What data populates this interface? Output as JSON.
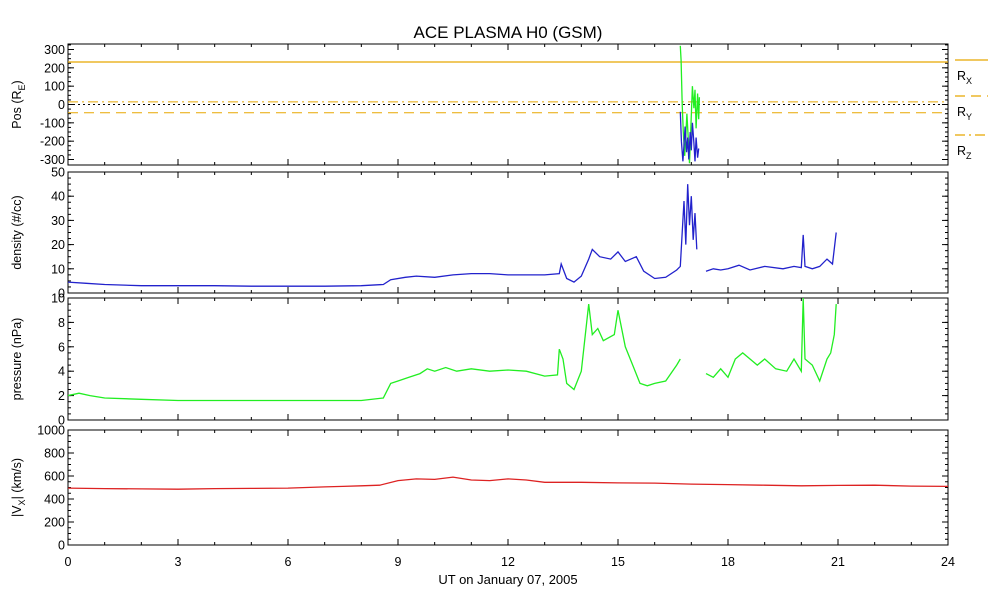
{
  "title": "ACE PLASMA H0 (GSM)",
  "x_axis": {
    "label": "UT on January 07, 2005",
    "min": 0,
    "max": 24,
    "ticks": [
      0,
      3,
      6,
      9,
      12,
      15,
      18,
      21,
      24
    ]
  },
  "panels": [
    {
      "id": "pos",
      "ylabel": "Pos (R",
      "ylabel_sub": "E",
      "ylabel_end": ")",
      "ylim": [
        -330,
        330
      ],
      "ticks": [
        -300,
        -200,
        -100,
        0,
        100,
        200,
        300
      ]
    },
    {
      "id": "density",
      "ylabel": "density (#/cc)",
      "ylim": [
        0,
        50
      ],
      "ticks": [
        0,
        10,
        20,
        30,
        40,
        50
      ]
    },
    {
      "id": "pressure",
      "ylabel": "pressure (nPa)",
      "ylim": [
        0,
        10
      ],
      "ticks": [
        0,
        2,
        4,
        6,
        8,
        10
      ]
    },
    {
      "id": "vx",
      "ylabel_pre": "|V",
      "ylabel_sub": "X",
      "ylabel_post": "| (km/s)",
      "ylim": [
        0,
        1000
      ],
      "ticks": [
        0,
        200,
        400,
        600,
        800,
        1000
      ]
    }
  ],
  "legend": [
    {
      "label": "R",
      "sub": "X",
      "style": "solid",
      "color": "#e8a700"
    },
    {
      "label": "R",
      "sub": "Y",
      "style": "dashed",
      "color": "#e8a700"
    },
    {
      "label": "R",
      "sub": "Z",
      "style": "dashdot",
      "color": "#e8a700"
    }
  ],
  "chart_data": [
    {
      "type": "line",
      "panel": "pos",
      "ylabel": "Pos (RE)",
      "xlim": [
        0,
        24
      ],
      "ylim": [
        -330,
        330
      ],
      "series": [
        {
          "name": "RX",
          "color": "#e8a700",
          "style": "solid",
          "x": [
            0,
            24
          ],
          "y": [
            232,
            232
          ]
        },
        {
          "name": "RY",
          "color": "#e8a700",
          "style": "dashed",
          "x": [
            0,
            24
          ],
          "y": [
            -45,
            -45
          ]
        },
        {
          "name": "RZ",
          "color": "#e8a700",
          "style": "dashdot",
          "x": [
            0,
            24
          ],
          "y": [
            14,
            14
          ]
        },
        {
          "color": "#000000",
          "style": "dotted",
          "x": [
            0,
            24
          ],
          "y": [
            0,
            0
          ]
        },
        {
          "color": "#22ee22",
          "style": "solid",
          "x": [
            16.7,
            16.72,
            16.75,
            16.78,
            16.82,
            16.85,
            16.88,
            16.92,
            16.95,
            17.0,
            17.03,
            17.07,
            17.1,
            17.13,
            17.17,
            17.2,
            17.22
          ],
          "y": [
            320,
            240,
            0,
            -150,
            -280,
            -170,
            -50,
            -200,
            -320,
            -60,
            100,
            -20,
            80,
            -130,
            60,
            -80,
            40
          ]
        },
        {
          "color": "#2222cc",
          "style": "solid",
          "x": [
            16.7,
            16.73,
            16.77,
            16.8,
            16.83,
            16.87,
            16.9,
            16.93,
            16.97,
            17.0,
            17.03,
            17.07,
            17.1,
            17.13,
            17.17,
            17.2
          ],
          "y": [
            -40,
            -200,
            -310,
            -220,
            -120,
            -260,
            -180,
            -300,
            -150,
            -250,
            -100,
            -210,
            -310,
            -180,
            -290,
            -240
          ]
        }
      ]
    },
    {
      "type": "line",
      "panel": "density",
      "ylabel": "density (#/cc)",
      "xlim": [
        0,
        24
      ],
      "ylim": [
        0,
        50
      ],
      "series": [
        {
          "color": "#2222cc",
          "x": [
            0,
            0.5,
            1,
            2,
            3,
            4,
            5,
            6,
            7,
            8,
            8.6,
            8.8,
            9.2,
            9.5,
            10,
            10.5,
            11,
            11.5,
            12,
            12.5,
            13.0,
            13.4,
            13.45,
            13.6,
            13.8,
            14.0,
            14.2,
            14.3,
            14.5,
            14.8,
            15.0,
            15.2,
            15.5,
            15.7,
            16.0,
            16.3,
            16.6,
            16.7,
            16.75,
            16.8,
            16.85,
            16.9,
            16.95,
            17.0,
            17.05,
            17.1,
            17.15,
            17.2,
            17.3,
            17.4,
            17.6,
            17.8,
            18.0,
            18.3,
            18.6,
            19.0,
            19.5,
            19.8,
            20.0,
            20.05,
            20.1,
            20.3,
            20.5,
            20.7,
            20.85,
            20.95
          ],
          "y": [
            4.5,
            4.0,
            3.5,
            3.0,
            3.0,
            3.0,
            2.8,
            2.8,
            2.8,
            3.0,
            3.5,
            5.5,
            6.5,
            7.0,
            6.5,
            7.5,
            8.0,
            8.0,
            7.5,
            7.5,
            7.5,
            8.0,
            12.0,
            6.0,
            4.5,
            7.0,
            14.0,
            18.0,
            15.0,
            14.0,
            17.0,
            13.0,
            15.0,
            9.0,
            6.0,
            6.5,
            9.5,
            11.0,
            25.0,
            38.0,
            20.0,
            45.0,
            28.0,
            40.0,
            22.0,
            33.0,
            18.0,
            null,
            null,
            9.0,
            10.0,
            9.5,
            10.0,
            11.5,
            9.5,
            11.0,
            10.0,
            11.0,
            10.5,
            24.0,
            11.0,
            10.0,
            11.0,
            14.0,
            12.0,
            25.0
          ]
        }
      ]
    },
    {
      "type": "line",
      "panel": "pressure",
      "ylabel": "pressure (nPa)",
      "xlim": [
        0,
        24
      ],
      "ylim": [
        0,
        10
      ],
      "series": [
        {
          "color": "#22ee22",
          "x": [
            0,
            0.3,
            0.6,
            1.0,
            2.0,
            3.0,
            4.0,
            5.0,
            6.0,
            7.0,
            8.0,
            8.6,
            8.8,
            9.0,
            9.3,
            9.6,
            9.8,
            10.0,
            10.3,
            10.6,
            11.0,
            11.5,
            12.0,
            12.5,
            13.0,
            13.35,
            13.4,
            13.5,
            13.6,
            13.8,
            14.0,
            14.2,
            14.3,
            14.45,
            14.6,
            14.9,
            15.0,
            15.2,
            15.4,
            15.6,
            15.8,
            16.0,
            16.3,
            16.6,
            16.7,
            null,
            17.4,
            17.6,
            17.8,
            18.0,
            18.2,
            18.4,
            18.8,
            19.0,
            19.3,
            19.6,
            19.8,
            20.0,
            20.05,
            20.1,
            20.3,
            20.5,
            20.7,
            20.8,
            20.9,
            20.95
          ],
          "y": [
            2.0,
            2.2,
            2.0,
            1.8,
            1.7,
            1.6,
            1.6,
            1.6,
            1.6,
            1.6,
            1.6,
            1.8,
            3.0,
            3.2,
            3.5,
            3.8,
            4.2,
            4.0,
            4.3,
            4.0,
            4.2,
            4.0,
            4.1,
            4.0,
            3.6,
            3.7,
            5.8,
            5.0,
            3.0,
            2.5,
            4.0,
            9.5,
            7.0,
            7.5,
            6.5,
            7.0,
            9.0,
            6.0,
            4.5,
            3.0,
            2.8,
            3.0,
            3.2,
            4.5,
            5.0,
            null,
            3.8,
            3.5,
            4.2,
            3.5,
            5.0,
            5.5,
            4.5,
            5.0,
            4.2,
            4.0,
            5.0,
            4.0,
            10.0,
            5.0,
            4.5,
            3.2,
            5.0,
            5.5,
            7.0,
            9.5
          ]
        }
      ]
    },
    {
      "type": "line",
      "panel": "vx",
      "ylabel": "|VX| (km/s)",
      "xlim": [
        0,
        24
      ],
      "ylim": [
        0,
        1000
      ],
      "series": [
        {
          "color": "#dd2222",
          "x": [
            0,
            1,
            2,
            3,
            4,
            5,
            6,
            7,
            7.5,
            8,
            8.5,
            9.0,
            9.5,
            10.0,
            10.5,
            11.0,
            11.5,
            12.0,
            12.5,
            13.0,
            14.0,
            15.0,
            16.0,
            17.0,
            18.0,
            19.0,
            20.0,
            21.0,
            22.0,
            23.0,
            24.0
          ],
          "y": [
            495,
            490,
            488,
            485,
            490,
            492,
            495,
            505,
            510,
            515,
            520,
            560,
            575,
            570,
            590,
            565,
            560,
            575,
            565,
            545,
            545,
            540,
            538,
            530,
            525,
            520,
            515,
            518,
            520,
            512,
            510
          ]
        }
      ]
    }
  ]
}
